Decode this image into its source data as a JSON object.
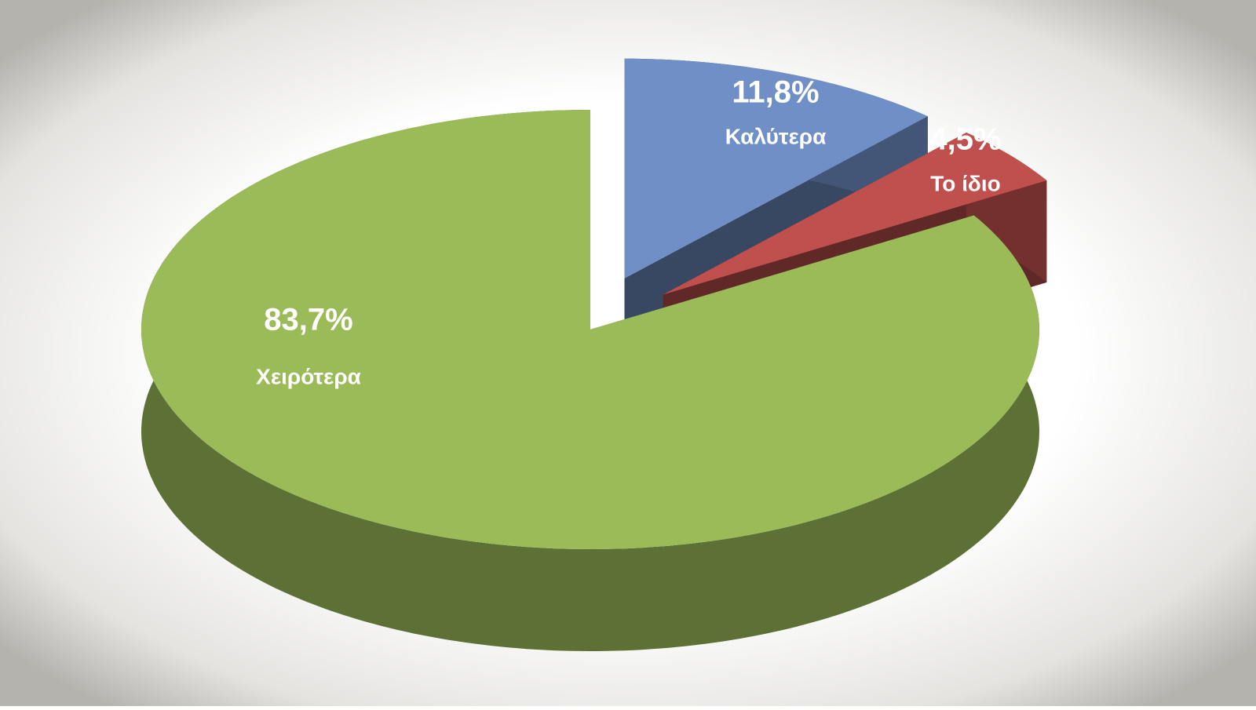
{
  "chart_data": {
    "type": "pie",
    "categories": [
      "Καλύτερα",
      "Το ίδιο",
      "Χειρότερα"
    ],
    "values": [
      11.8,
      4.5,
      83.7
    ],
    "value_labels": [
      "11,8%",
      "4,5%",
      "83,7%"
    ],
    "colors": [
      "#6f8fc6",
      "#c0504d",
      "#9bbb59"
    ]
  }
}
